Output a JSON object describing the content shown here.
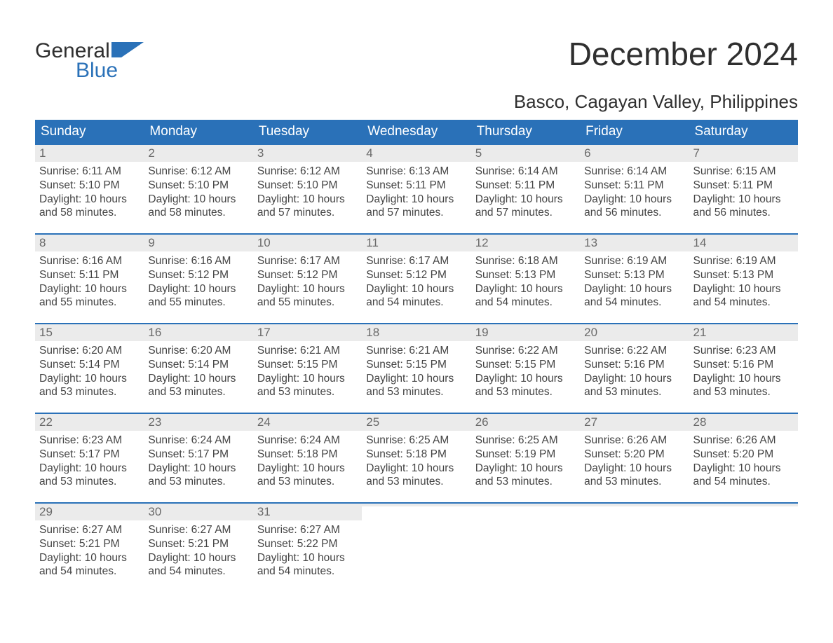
{
  "brand": {
    "line1": "General",
    "line2": "Blue",
    "text_color": "#2f2f2f",
    "accent_color": "#2a71b8"
  },
  "title": "December 2024",
  "location": "Basco, Cagayan Valley, Philippines",
  "colors": {
    "header_bg": "#2a71b8",
    "header_fg": "#ffffff",
    "daynum_bg": "#ebebeb",
    "daynum_fg": "#6a6a6a",
    "body_fg": "#444444",
    "week_rule": "#2a71b8",
    "page_bg": "#ffffff"
  },
  "typography": {
    "title_fontsize": 46,
    "location_fontsize": 26,
    "header_fontsize": 19,
    "daynum_fontsize": 17,
    "body_fontsize": 15.5,
    "family": "Arial"
  },
  "day_headers": [
    "Sunday",
    "Monday",
    "Tuesday",
    "Wednesday",
    "Thursday",
    "Friday",
    "Saturday"
  ],
  "weeks": [
    [
      {
        "n": "1",
        "sunrise": "Sunrise: 6:11 AM",
        "sunset": "Sunset: 5:10 PM",
        "daylight": "Daylight: 10 hours and 58 minutes."
      },
      {
        "n": "2",
        "sunrise": "Sunrise: 6:12 AM",
        "sunset": "Sunset: 5:10 PM",
        "daylight": "Daylight: 10 hours and 58 minutes."
      },
      {
        "n": "3",
        "sunrise": "Sunrise: 6:12 AM",
        "sunset": "Sunset: 5:10 PM",
        "daylight": "Daylight: 10 hours and 57 minutes."
      },
      {
        "n": "4",
        "sunrise": "Sunrise: 6:13 AM",
        "sunset": "Sunset: 5:11 PM",
        "daylight": "Daylight: 10 hours and 57 minutes."
      },
      {
        "n": "5",
        "sunrise": "Sunrise: 6:14 AM",
        "sunset": "Sunset: 5:11 PM",
        "daylight": "Daylight: 10 hours and 57 minutes."
      },
      {
        "n": "6",
        "sunrise": "Sunrise: 6:14 AM",
        "sunset": "Sunset: 5:11 PM",
        "daylight": "Daylight: 10 hours and 56 minutes."
      },
      {
        "n": "7",
        "sunrise": "Sunrise: 6:15 AM",
        "sunset": "Sunset: 5:11 PM",
        "daylight": "Daylight: 10 hours and 56 minutes."
      }
    ],
    [
      {
        "n": "8",
        "sunrise": "Sunrise: 6:16 AM",
        "sunset": "Sunset: 5:11 PM",
        "daylight": "Daylight: 10 hours and 55 minutes."
      },
      {
        "n": "9",
        "sunrise": "Sunrise: 6:16 AM",
        "sunset": "Sunset: 5:12 PM",
        "daylight": "Daylight: 10 hours and 55 minutes."
      },
      {
        "n": "10",
        "sunrise": "Sunrise: 6:17 AM",
        "sunset": "Sunset: 5:12 PM",
        "daylight": "Daylight: 10 hours and 55 minutes."
      },
      {
        "n": "11",
        "sunrise": "Sunrise: 6:17 AM",
        "sunset": "Sunset: 5:12 PM",
        "daylight": "Daylight: 10 hours and 54 minutes."
      },
      {
        "n": "12",
        "sunrise": "Sunrise: 6:18 AM",
        "sunset": "Sunset: 5:13 PM",
        "daylight": "Daylight: 10 hours and 54 minutes."
      },
      {
        "n": "13",
        "sunrise": "Sunrise: 6:19 AM",
        "sunset": "Sunset: 5:13 PM",
        "daylight": "Daylight: 10 hours and 54 minutes."
      },
      {
        "n": "14",
        "sunrise": "Sunrise: 6:19 AM",
        "sunset": "Sunset: 5:13 PM",
        "daylight": "Daylight: 10 hours and 54 minutes."
      }
    ],
    [
      {
        "n": "15",
        "sunrise": "Sunrise: 6:20 AM",
        "sunset": "Sunset: 5:14 PM",
        "daylight": "Daylight: 10 hours and 53 minutes."
      },
      {
        "n": "16",
        "sunrise": "Sunrise: 6:20 AM",
        "sunset": "Sunset: 5:14 PM",
        "daylight": "Daylight: 10 hours and 53 minutes."
      },
      {
        "n": "17",
        "sunrise": "Sunrise: 6:21 AM",
        "sunset": "Sunset: 5:15 PM",
        "daylight": "Daylight: 10 hours and 53 minutes."
      },
      {
        "n": "18",
        "sunrise": "Sunrise: 6:21 AM",
        "sunset": "Sunset: 5:15 PM",
        "daylight": "Daylight: 10 hours and 53 minutes."
      },
      {
        "n": "19",
        "sunrise": "Sunrise: 6:22 AM",
        "sunset": "Sunset: 5:15 PM",
        "daylight": "Daylight: 10 hours and 53 minutes."
      },
      {
        "n": "20",
        "sunrise": "Sunrise: 6:22 AM",
        "sunset": "Sunset: 5:16 PM",
        "daylight": "Daylight: 10 hours and 53 minutes."
      },
      {
        "n": "21",
        "sunrise": "Sunrise: 6:23 AM",
        "sunset": "Sunset: 5:16 PM",
        "daylight": "Daylight: 10 hours and 53 minutes."
      }
    ],
    [
      {
        "n": "22",
        "sunrise": "Sunrise: 6:23 AM",
        "sunset": "Sunset: 5:17 PM",
        "daylight": "Daylight: 10 hours and 53 minutes."
      },
      {
        "n": "23",
        "sunrise": "Sunrise: 6:24 AM",
        "sunset": "Sunset: 5:17 PM",
        "daylight": "Daylight: 10 hours and 53 minutes."
      },
      {
        "n": "24",
        "sunrise": "Sunrise: 6:24 AM",
        "sunset": "Sunset: 5:18 PM",
        "daylight": "Daylight: 10 hours and 53 minutes."
      },
      {
        "n": "25",
        "sunrise": "Sunrise: 6:25 AM",
        "sunset": "Sunset: 5:18 PM",
        "daylight": "Daylight: 10 hours and 53 minutes."
      },
      {
        "n": "26",
        "sunrise": "Sunrise: 6:25 AM",
        "sunset": "Sunset: 5:19 PM",
        "daylight": "Daylight: 10 hours and 53 minutes."
      },
      {
        "n": "27",
        "sunrise": "Sunrise: 6:26 AM",
        "sunset": "Sunset: 5:20 PM",
        "daylight": "Daylight: 10 hours and 53 minutes."
      },
      {
        "n": "28",
        "sunrise": "Sunrise: 6:26 AM",
        "sunset": "Sunset: 5:20 PM",
        "daylight": "Daylight: 10 hours and 54 minutes."
      }
    ],
    [
      {
        "n": "29",
        "sunrise": "Sunrise: 6:27 AM",
        "sunset": "Sunset: 5:21 PM",
        "daylight": "Daylight: 10 hours and 54 minutes."
      },
      {
        "n": "30",
        "sunrise": "Sunrise: 6:27 AM",
        "sunset": "Sunset: 5:21 PM",
        "daylight": "Daylight: 10 hours and 54 minutes."
      },
      {
        "n": "31",
        "sunrise": "Sunrise: 6:27 AM",
        "sunset": "Sunset: 5:22 PM",
        "daylight": "Daylight: 10 hours and 54 minutes."
      },
      null,
      null,
      null,
      null
    ]
  ]
}
